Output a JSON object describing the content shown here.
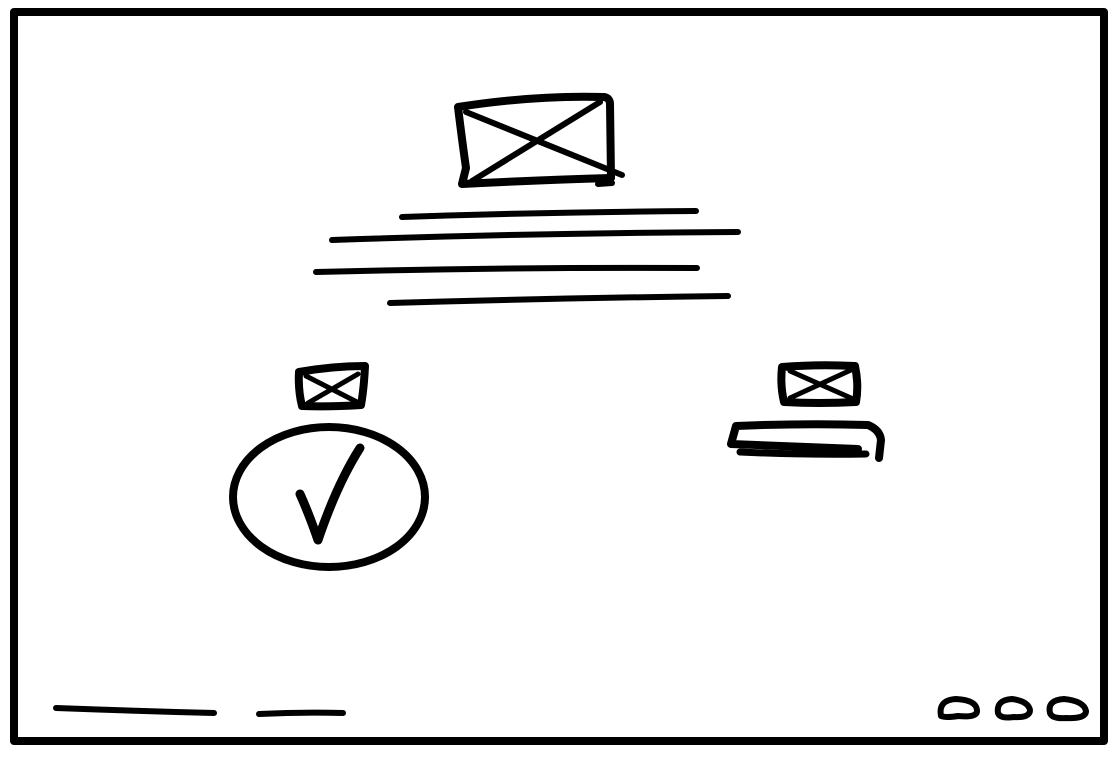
{
  "style": {
    "ink": "#000000",
    "paper": "#ffffff"
  },
  "hero": {
    "image": "image-placeholder-icon",
    "text_lines": 4
  },
  "left_column": {
    "image": "image-placeholder-icon",
    "control": "checkmark-circle-icon"
  },
  "right_column": {
    "image": "image-placeholder-icon",
    "control": "input-field"
  },
  "footer": {
    "text_lines": 2,
    "pagination_dots": 3
  }
}
